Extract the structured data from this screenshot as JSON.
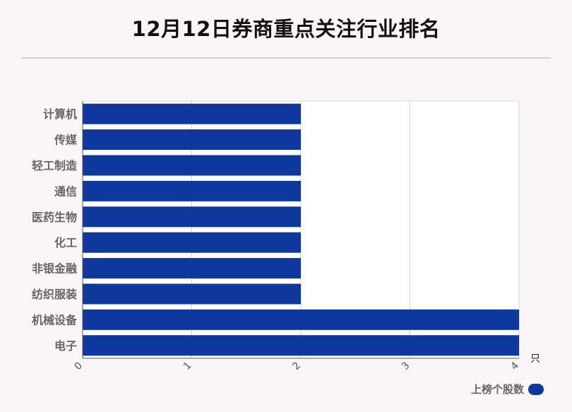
{
  "title": "12月12日券商重点关注行业排名",
  "colors": {
    "bar": "#0f389d",
    "background": "#f9f5f6"
  },
  "chart_data": {
    "type": "bar",
    "orientation": "horizontal",
    "categories": [
      "计算机",
      "传媒",
      "轻工制造",
      "通信",
      "医药生物",
      "化工",
      "非银金融",
      "纺织服装",
      "机械设备",
      "电子"
    ],
    "series": [
      {
        "name": "上榜个股数",
        "values": [
          2,
          2,
          2,
          2,
          2,
          2,
          2,
          2,
          4,
          4
        ]
      }
    ],
    "xlim": [
      0,
      4
    ],
    "xticks": [
      "0",
      "1",
      "2",
      "3",
      "4"
    ],
    "xunit": "只",
    "grid": true,
    "legend_position": "bottom-right"
  }
}
